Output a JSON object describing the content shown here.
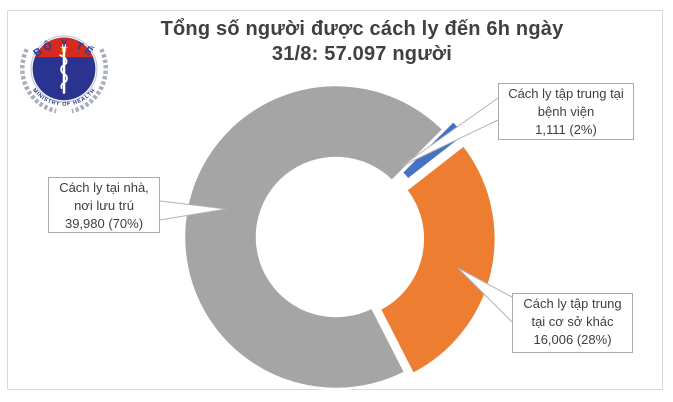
{
  "header": {
    "line1": "Tổng số người được cách ly đến 6h ngày",
    "line2": "31/8: 57.097 người"
  },
  "logo": {
    "top_text": "BỘ Y TẾ",
    "bottom_text": "MINISTRY OF HEALTH"
  },
  "chart_data": {
    "type": "pie",
    "subtype": "donut",
    "title": "Tổng số người được cách ly đến 6h ngày 31/8: 57.097 người",
    "total": 57097,
    "start_angle_deg": 45,
    "hole_ratio": 0.52,
    "legend": "none",
    "slice_border_color": "#FFFFFF",
    "series": [
      {
        "id": "hospital",
        "name": "Cách ly tập trung tại bệnh viện",
        "value": 1111,
        "percent": "2%",
        "color": "#4472C4",
        "explode": 13
      },
      {
        "id": "other",
        "name": "Cách ly tập trung tại cơ sở khác",
        "value": 16006,
        "percent": "28%",
        "color": "#ED7D31",
        "explode": 8
      },
      {
        "id": "home",
        "name": "Cách ly tại nhà, nơi lưu trú",
        "value": 39980,
        "percent": "70%",
        "color": "#A5A5A5",
        "explode": 0
      }
    ]
  },
  "callouts": {
    "home": {
      "line1": "Cách ly tại nhà,",
      "line2": "nơi lưu trú",
      "line3": "39,980 (70%)"
    },
    "hospital": {
      "line1": "Cách ly tập trung tại",
      "line2": "bệnh viện",
      "line3": "1,111 (2%)"
    },
    "other": {
      "line1": "Cách ly tập trung",
      "line2": "tại cơ sở khác",
      "line3": "16,006 (28%)"
    }
  },
  "colors": {
    "title_text": "#404040",
    "frame_border": "#D9D9D9",
    "callout_border": "#A9A9A9",
    "leader_line": "#B3B3B3",
    "logo_red": "#D42B1E",
    "logo_navy": "#2B3390",
    "logo_star_yellow": "#F5C400"
  }
}
